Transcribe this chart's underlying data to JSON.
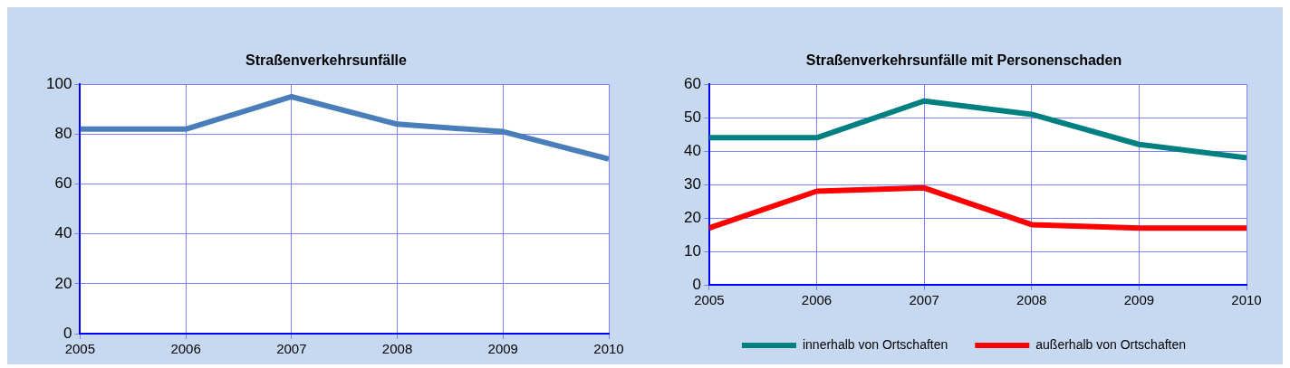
{
  "chart_data": [
    {
      "type": "line",
      "title": "Straßenverkehrsunfälle",
      "x": [
        2005,
        2006,
        2007,
        2008,
        2009,
        2010
      ],
      "xlim": [
        2005,
        2010
      ],
      "xticks": [
        2005,
        2006,
        2007,
        2008,
        2009,
        2010
      ],
      "ylim": [
        0,
        100
      ],
      "yticks": [
        0,
        20,
        40,
        60,
        80,
        100
      ],
      "grid": true,
      "legend": false,
      "marker": "none",
      "series": [
        {
          "color": "#4a7ebb",
          "values": [
            82,
            82,
            95,
            84,
            81,
            70
          ]
        }
      ]
    },
    {
      "type": "line",
      "title": "Straßenverkehrsunfälle mit Personenschaden",
      "x": [
        2005,
        2006,
        2007,
        2008,
        2009,
        2010
      ],
      "xlim": [
        2005,
        2010
      ],
      "xticks": [
        2005,
        2006,
        2007,
        2008,
        2009,
        2010
      ],
      "ylim": [
        0,
        60
      ],
      "yticks": [
        0,
        10,
        20,
        30,
        40,
        50,
        60
      ],
      "grid": true,
      "legend": "bottom",
      "marker": "none",
      "series": [
        {
          "name": "innerhalb von Ortschaften",
          "color": "#008080",
          "values": [
            44,
            44,
            55,
            51,
            42,
            38
          ]
        },
        {
          "name": "außerhalb von Ortschaften",
          "color": "#ff0000",
          "values": [
            17,
            28,
            29,
            18,
            17,
            17
          ]
        }
      ]
    }
  ]
}
